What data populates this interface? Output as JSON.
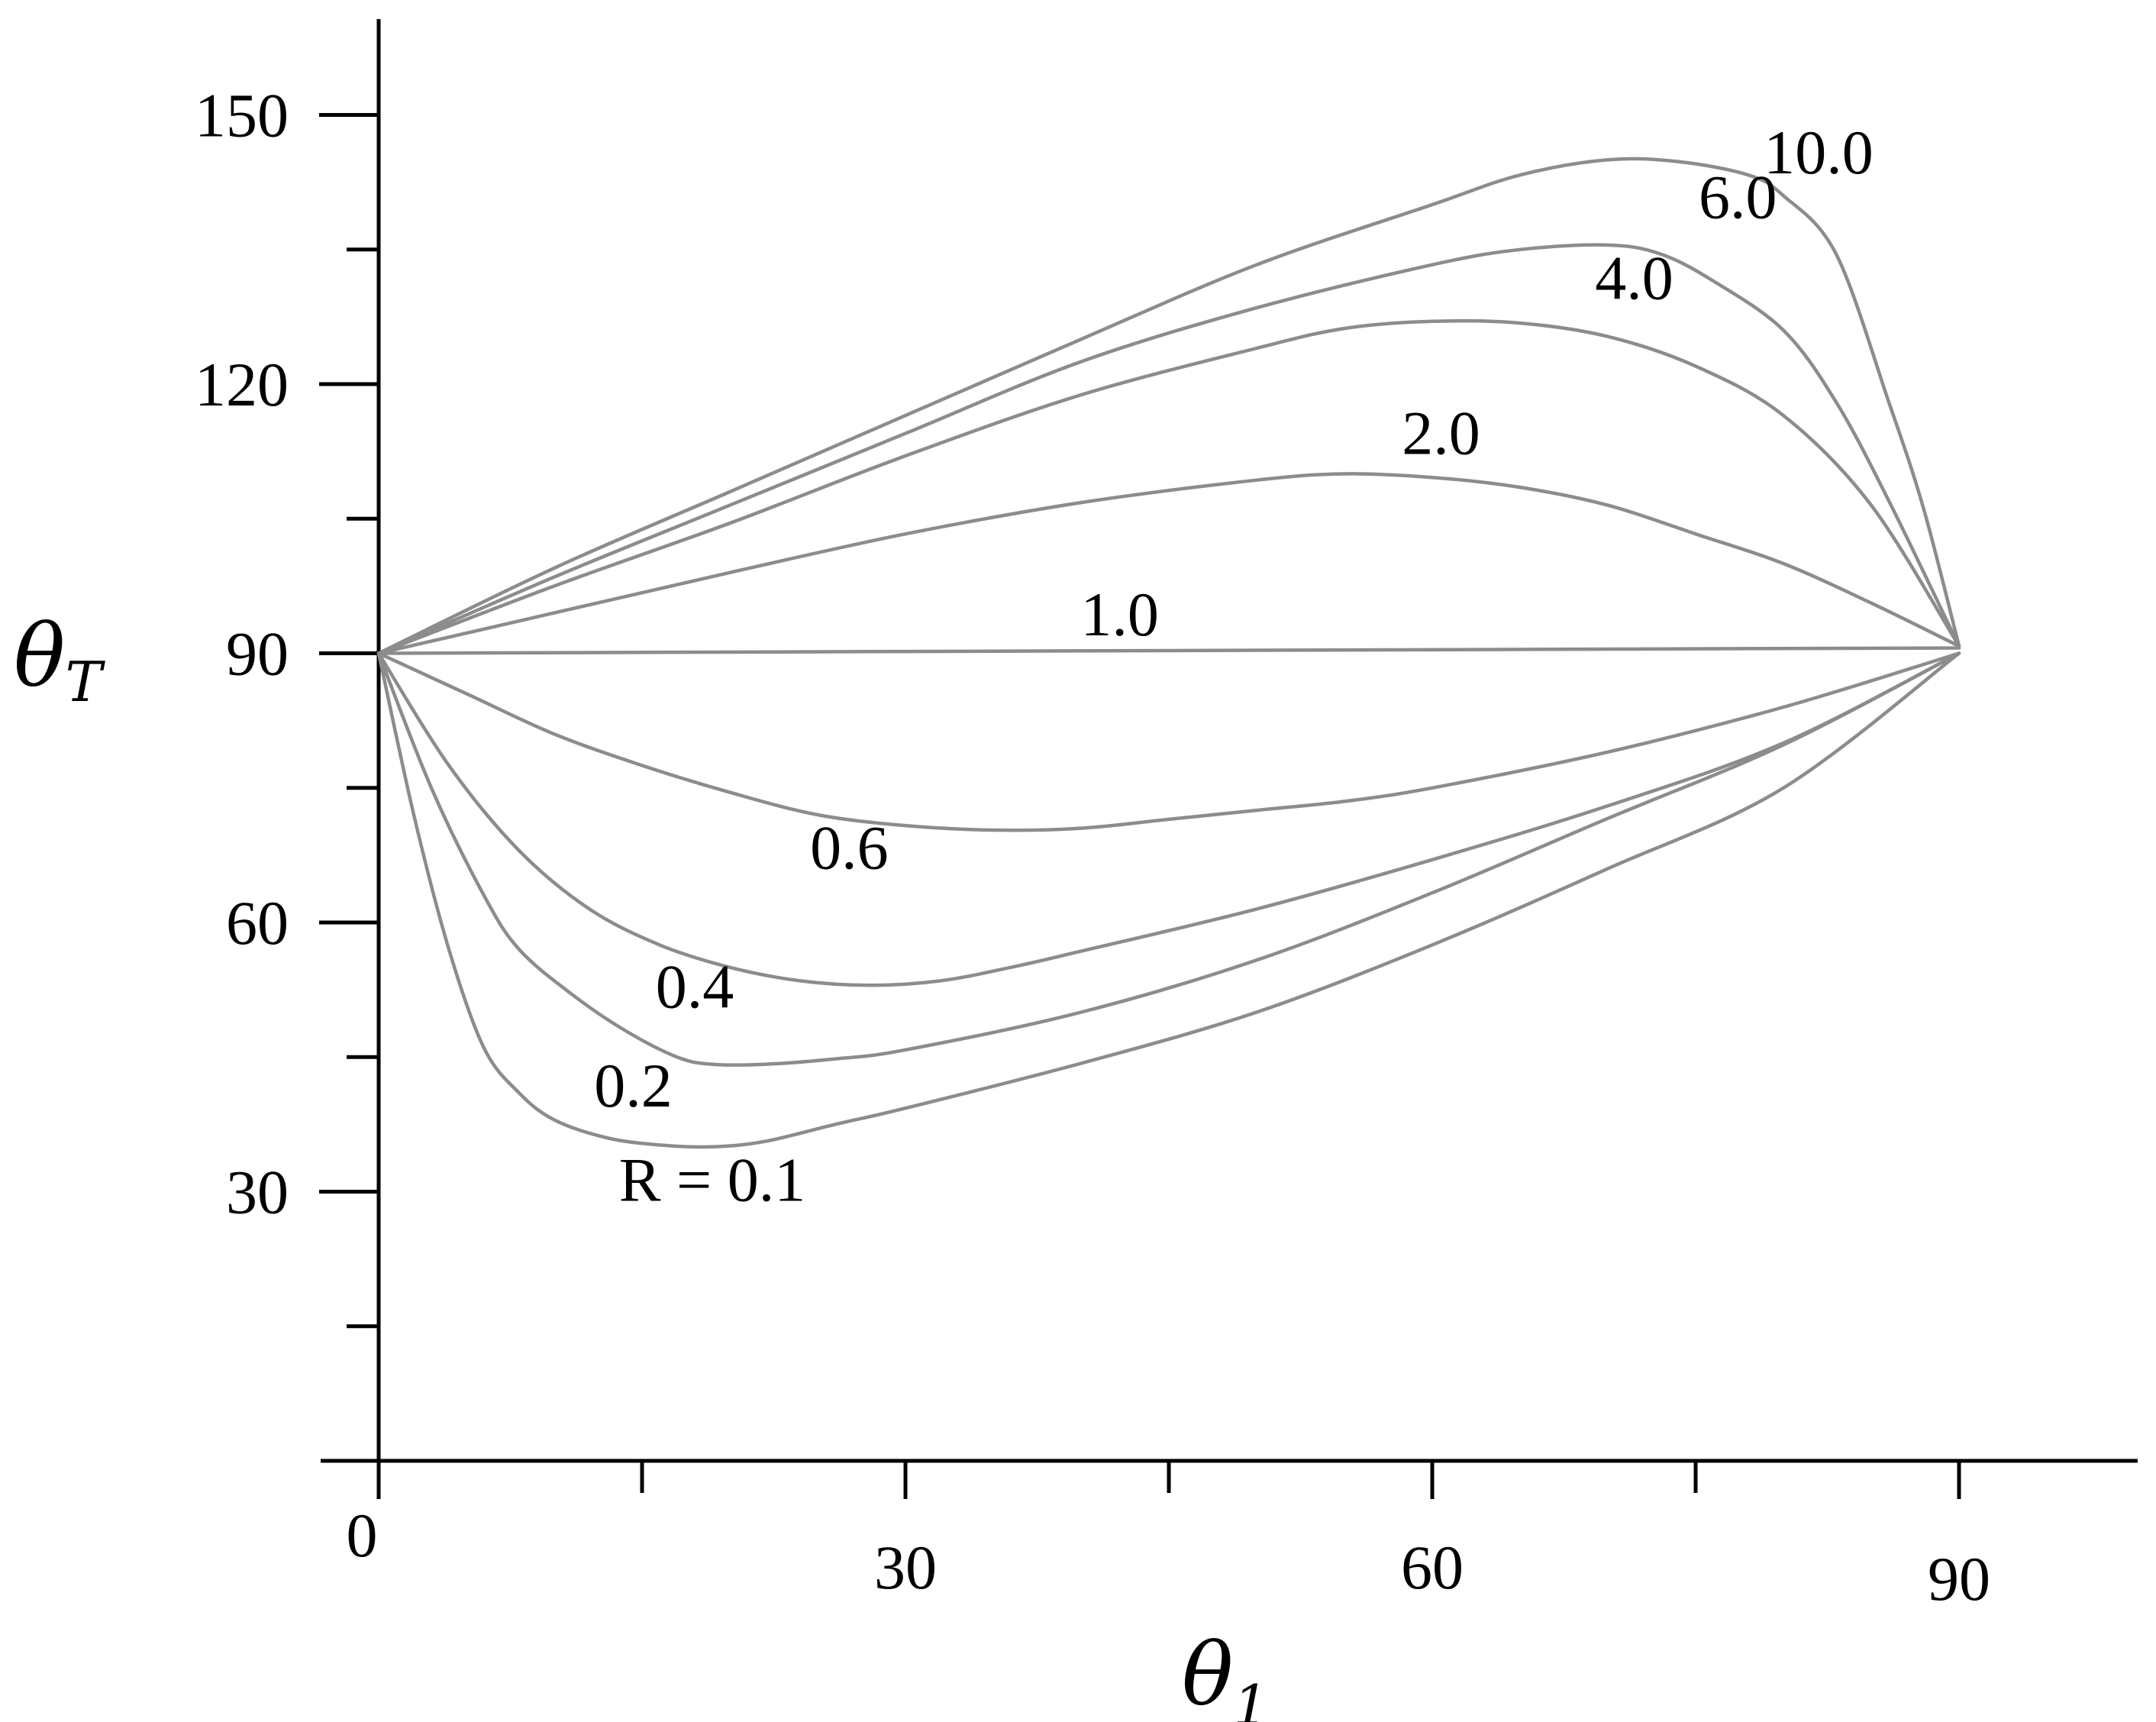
{
  "chart_data": {
    "type": "line",
    "title": "",
    "xlabel": "θ",
    "xlabel_sub": "1",
    "ylabel": "θ",
    "ylabel_sub": "T",
    "xlim": [
      0,
      100
    ],
    "ylim": [
      0,
      160
    ],
    "grid": false,
    "legend": "none",
    "line_color": "#8c8c8c",
    "x_ticks_major": [
      0,
      30,
      60,
      90
    ],
    "x_tick_labels": [
      "0",
      "30",
      "60",
      "90"
    ],
    "x_ticks_minor": [
      15,
      45,
      75
    ],
    "y_ticks_major": [
      30,
      60,
      90,
      120,
      150
    ],
    "y_tick_labels": [
      "30",
      "60",
      "90",
      "120",
      "150"
    ],
    "y_ticks_minor": [
      15,
      45,
      75,
      105,
      135
    ],
    "series": [
      {
        "label": "R = 0.1",
        "label_pos": {
          "x": 19,
          "y": 29
        },
        "points": [
          [
            0,
            90
          ],
          [
            2,
            72
          ],
          [
            4,
            57
          ],
          [
            6,
            46
          ],
          [
            8,
            41
          ],
          [
            10,
            38
          ],
          [
            13,
            36
          ],
          [
            16,
            35.2
          ],
          [
            19,
            35
          ],
          [
            22,
            35.6
          ],
          [
            26,
            37.5
          ],
          [
            30,
            39.3
          ],
          [
            40,
            44.3
          ],
          [
            50,
            50
          ],
          [
            60,
            57.5
          ],
          [
            70,
            66
          ],
          [
            80,
            75
          ],
          [
            90,
            90
          ]
        ]
      },
      {
        "label": "0.2",
        "label_pos": {
          "x": 14.5,
          "y": 39.5
        },
        "points": [
          [
            0,
            90
          ],
          [
            3,
            75
          ],
          [
            6,
            63
          ],
          [
            8,
            57
          ],
          [
            11,
            52
          ],
          [
            14,
            48
          ],
          [
            17,
            45
          ],
          [
            19,
            44.2
          ],
          [
            22,
            44.2
          ],
          [
            26,
            44.8
          ],
          [
            30,
            45.8
          ],
          [
            40,
            50
          ],
          [
            50,
            55.8
          ],
          [
            60,
            63.3
          ],
          [
            70,
            71.6
          ],
          [
            80,
            79.8
          ],
          [
            90,
            90
          ]
        ]
      },
      {
        "label": "0.4",
        "label_pos": {
          "x": 18,
          "y": 50.5
        },
        "points": [
          [
            0,
            90
          ],
          [
            4,
            77.5
          ],
          [
            8,
            68
          ],
          [
            12,
            61.5
          ],
          [
            16,
            57.5
          ],
          [
            20,
            55
          ],
          [
            24,
            53.5
          ],
          [
            28,
            53
          ],
          [
            32,
            53.5
          ],
          [
            36,
            55
          ],
          [
            40,
            56.8
          ],
          [
            50,
            61.5
          ],
          [
            60,
            67
          ],
          [
            70,
            73
          ],
          [
            80,
            80
          ],
          [
            90,
            90
          ]
        ]
      },
      {
        "label": "0.6",
        "label_pos": {
          "x": 26.8,
          "y": 66
        },
        "points": [
          [
            0,
            90
          ],
          [
            5,
            85.5
          ],
          [
            10,
            81
          ],
          [
            15,
            77.5
          ],
          [
            20,
            74.5
          ],
          [
            25,
            72
          ],
          [
            30,
            70.8
          ],
          [
            35,
            70.3
          ],
          [
            40,
            70.5
          ],
          [
            45,
            71.5
          ],
          [
            50,
            72.5
          ],
          [
            55,
            73.5
          ],
          [
            60,
            75
          ],
          [
            70,
            79
          ],
          [
            80,
            84
          ],
          [
            90,
            90
          ]
        ]
      },
      {
        "label": "1.0",
        "label_pos": {
          "x": 42.2,
          "y": 92
        },
        "points": [
          [
            0,
            90
          ],
          [
            90,
            90.6
          ]
        ]
      },
      {
        "label": "2.0",
        "label_pos": {
          "x": 60.5,
          "y": 112.2
        },
        "points": [
          [
            0,
            90
          ],
          [
            10,
            94.5
          ],
          [
            20,
            99
          ],
          [
            30,
            103.3
          ],
          [
            40,
            106.8
          ],
          [
            50,
            109.3
          ],
          [
            55,
            110
          ],
          [
            60,
            109.6
          ],
          [
            65,
            108.5
          ],
          [
            70,
            106.5
          ],
          [
            75,
            103.3
          ],
          [
            80,
            100
          ],
          [
            85,
            95.6
          ],
          [
            90,
            90.8
          ]
        ]
      },
      {
        "label": "4.0",
        "label_pos": {
          "x": 71.5,
          "y": 129.5
        },
        "points": [
          [
            0,
            90
          ],
          [
            10,
            97.5
          ],
          [
            20,
            104.5
          ],
          [
            30,
            112
          ],
          [
            40,
            118.8
          ],
          [
            50,
            124
          ],
          [
            55,
            126.2
          ],
          [
            60,
            127
          ],
          [
            65,
            126.8
          ],
          [
            70,
            125.3
          ],
          [
            75,
            122
          ],
          [
            80,
            116.5
          ],
          [
            85,
            106.5
          ],
          [
            90,
            90.8
          ]
        ]
      },
      {
        "label": "6.0",
        "label_pos": {
          "x": 77.4,
          "y": 138.5
        },
        "points": [
          [
            0,
            90
          ],
          [
            10,
            98.5
          ],
          [
            20,
            106.5
          ],
          [
            30,
            114.5
          ],
          [
            40,
            122.5
          ],
          [
            50,
            128.5
          ],
          [
            60,
            133.3
          ],
          [
            65,
            135
          ],
          [
            70,
            135.5
          ],
          [
            73,
            134.5
          ],
          [
            76,
            131.5
          ],
          [
            80,
            126
          ],
          [
            83,
            118
          ],
          [
            86,
            107
          ],
          [
            90,
            90.8
          ]
        ]
      },
      {
        "label": "10.0",
        "label_pos": {
          "x": 82,
          "y": 143.5
        },
        "points": [
          [
            0,
            90
          ],
          [
            10,
            99.5
          ],
          [
            20,
            108
          ],
          [
            30,
            116.5
          ],
          [
            40,
            125
          ],
          [
            50,
            133.3
          ],
          [
            60,
            140
          ],
          [
            65,
            143.3
          ],
          [
            70,
            145
          ],
          [
            74,
            144.8
          ],
          [
            78,
            143.3
          ],
          [
            80,
            141
          ],
          [
            83,
            134.5
          ],
          [
            86,
            118
          ],
          [
            88,
            106
          ],
          [
            90,
            90.8
          ]
        ]
      }
    ]
  }
}
